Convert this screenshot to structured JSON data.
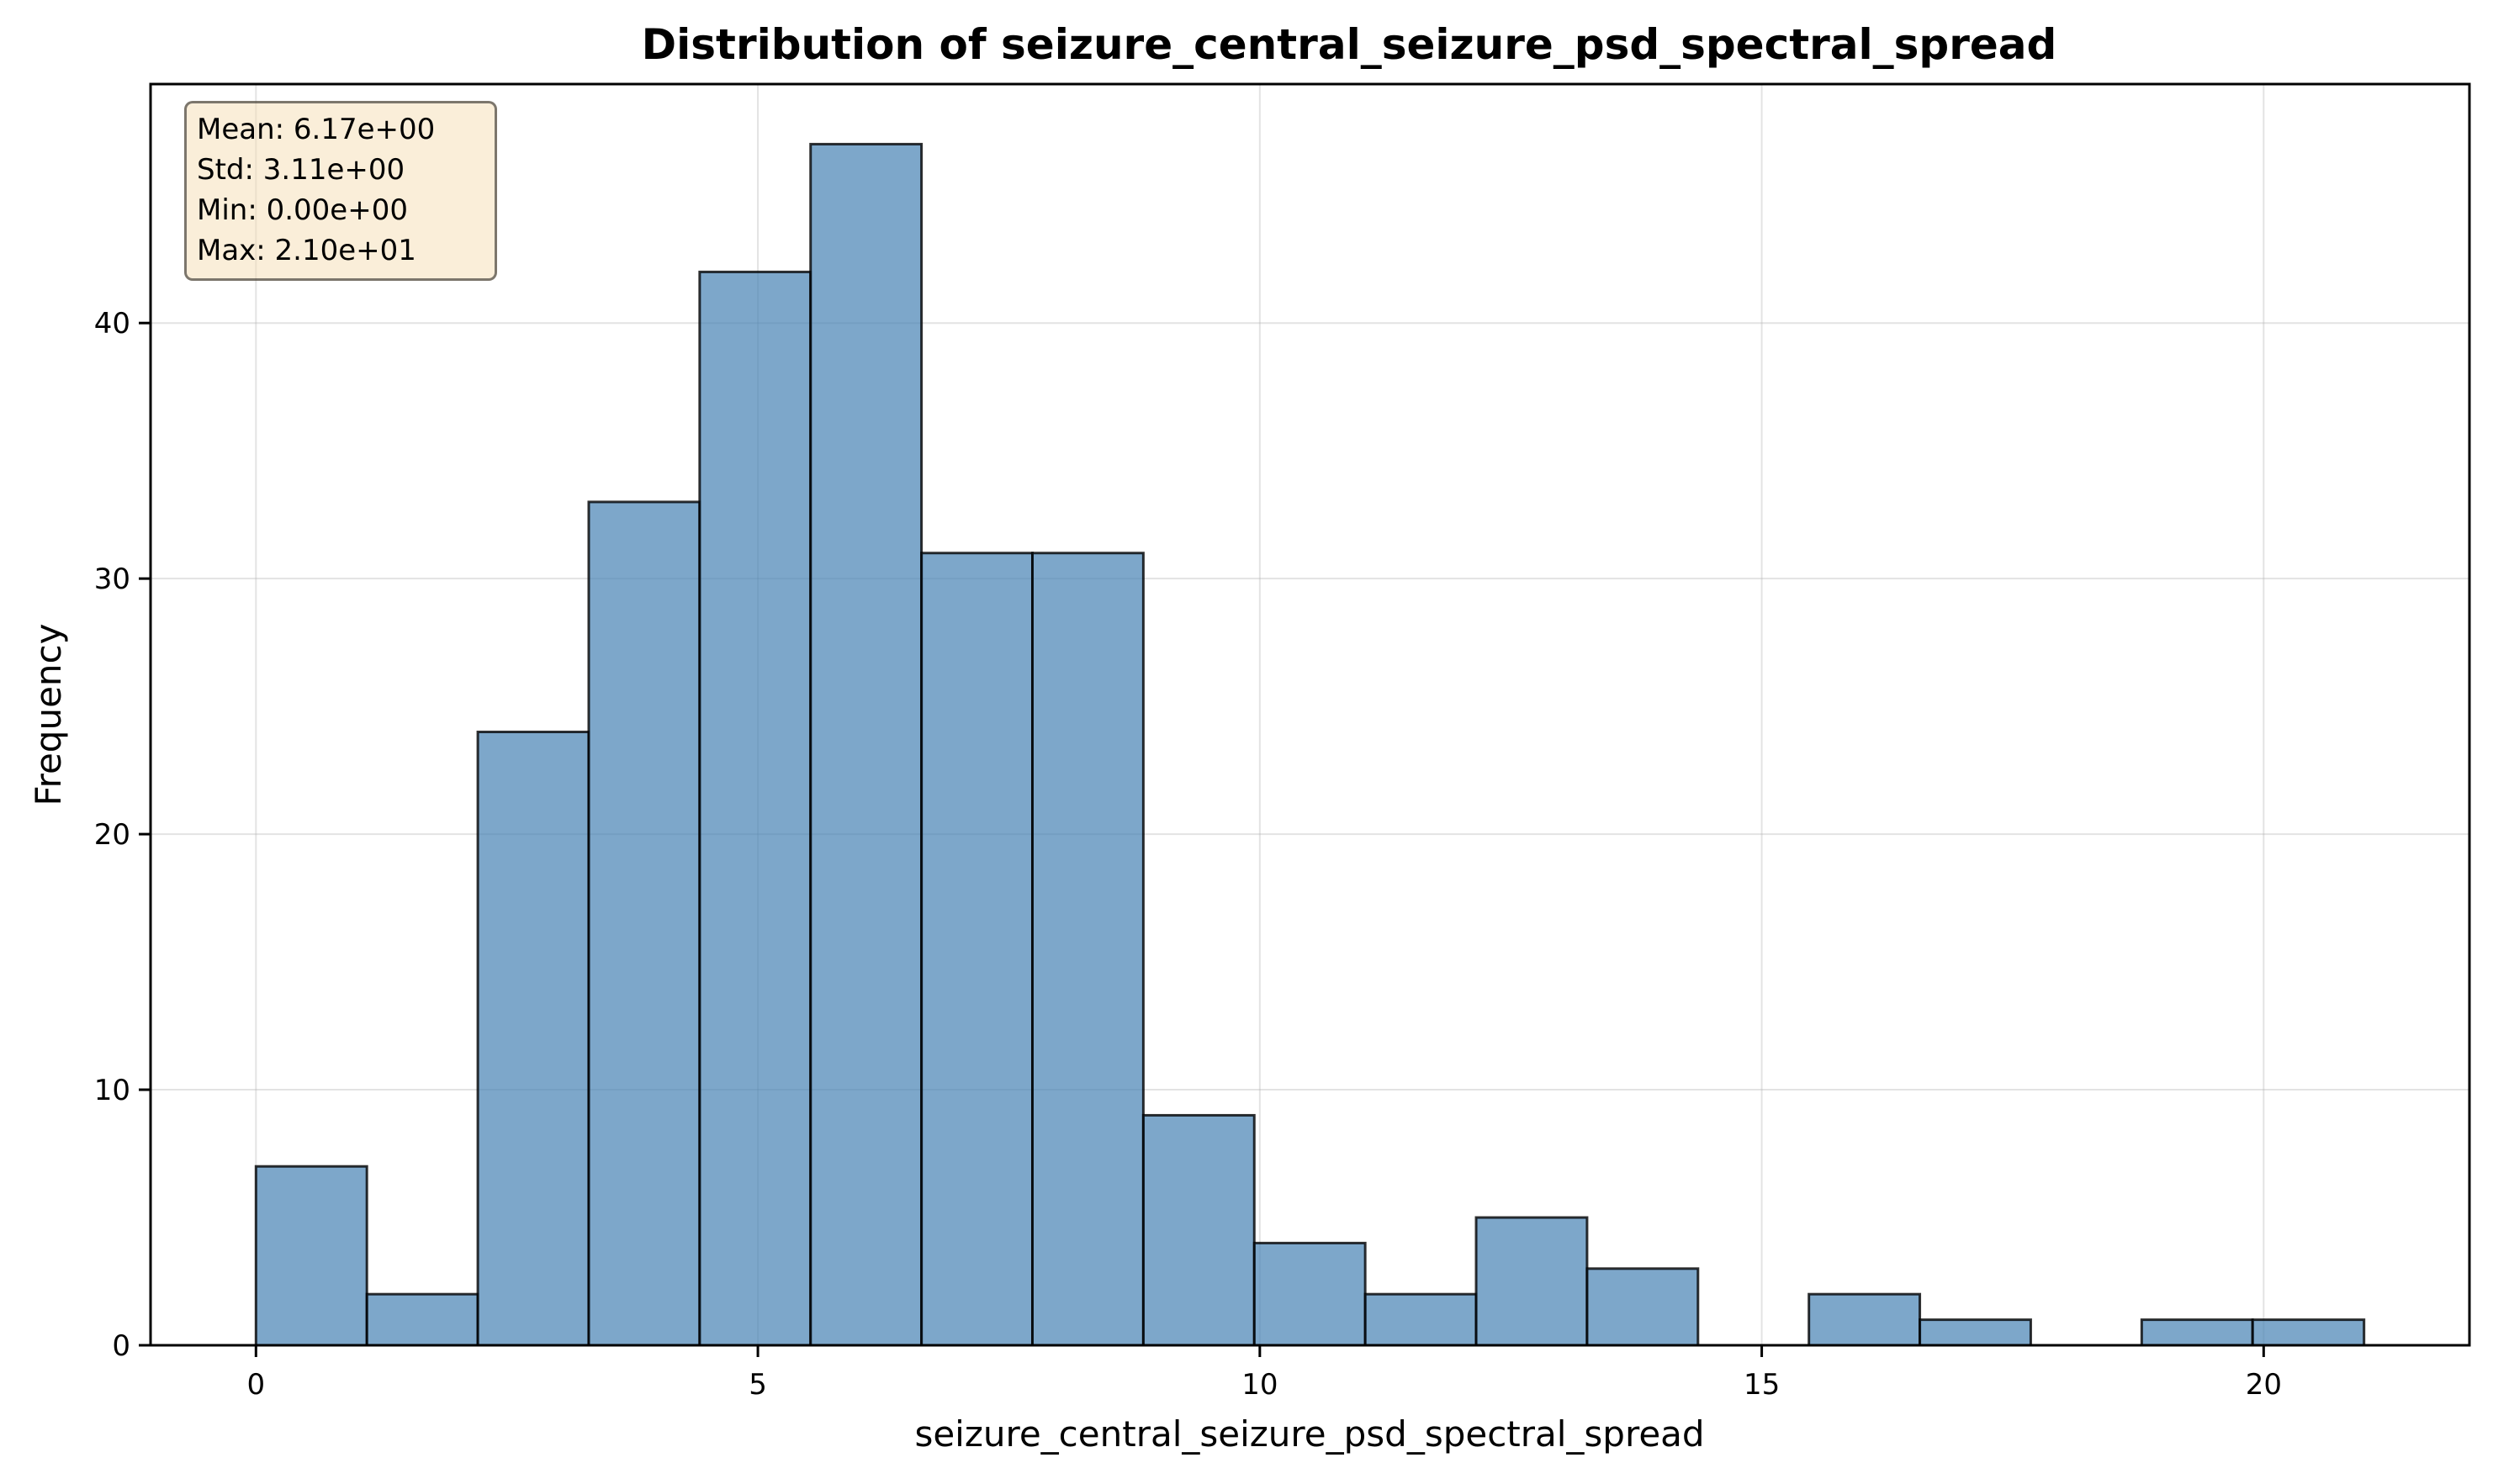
{
  "chart_data": {
    "type": "histogram",
    "title": "Distribution of seizure_central_seizure_psd_spectral_spread",
    "xlabel": "seizure_central_seizure_psd_spectral_spread",
    "ylabel": "Frequency",
    "xlim": [
      -1.05,
      22.05
    ],
    "ylim": [
      0,
      49.35
    ],
    "xticks": [
      0,
      5,
      10,
      15,
      20
    ],
    "yticks": [
      0,
      10,
      20,
      30,
      40
    ],
    "grid": true,
    "bin_edges": [
      0.0,
      1.105,
      2.21,
      3.315,
      4.42,
      5.525,
      6.63,
      7.735,
      8.84,
      9.945,
      11.05,
      12.155,
      13.26,
      14.365,
      15.47,
      16.575,
      17.68,
      18.785,
      19.89,
      21.0
    ],
    "counts": [
      7,
      2,
      24,
      33,
      42,
      47,
      31,
      31,
      9,
      4,
      2,
      5,
      3,
      0,
      2,
      1,
      0,
      1,
      1
    ],
    "bar_color": "#4682b4",
    "stats": {
      "mean": "Mean: 6.17e+00",
      "std": "Std: 3.11e+00",
      "min": "Min: 0.00e+00",
      "max": "Max: 2.10e+01"
    }
  }
}
